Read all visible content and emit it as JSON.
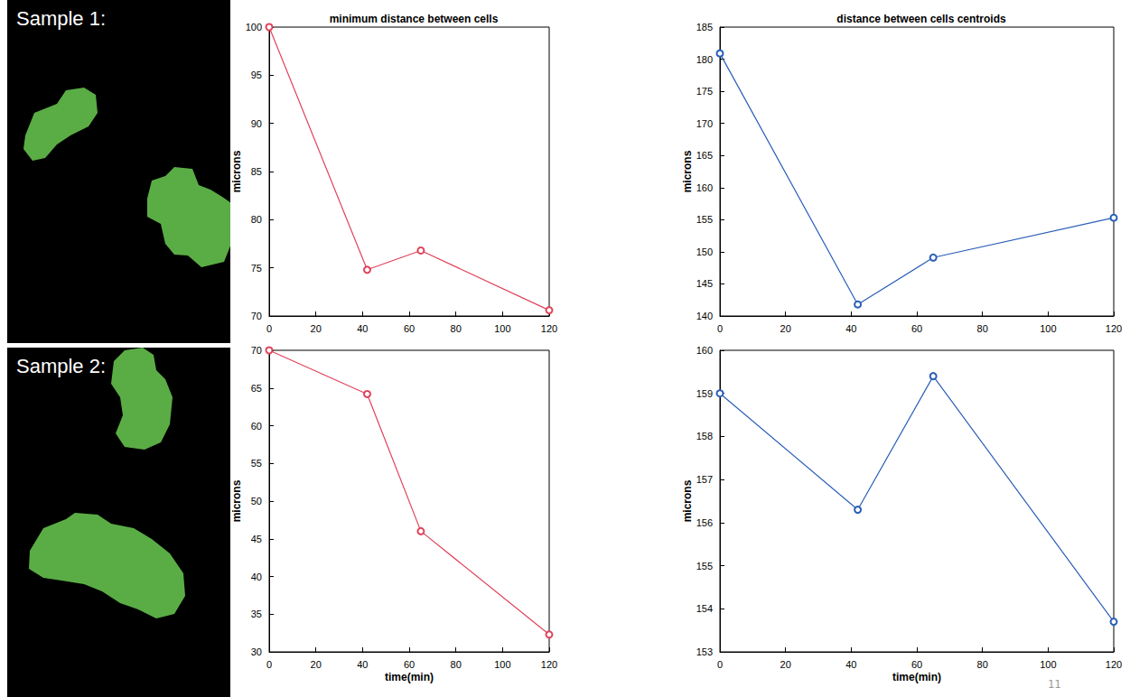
{
  "images": [
    {
      "label": "Sample 1:"
    },
    {
      "label": "Sample 2:"
    }
  ],
  "page_number": "11",
  "chart_data": [
    {
      "type": "line",
      "title": "minimum distance between cells",
      "ylabel": "microns",
      "x": [
        0,
        42,
        65,
        120
      ],
      "values": [
        100,
        74.8,
        76.8,
        70.6
      ],
      "color": "#e0435a",
      "marker": "circle",
      "xlim": [
        0,
        120
      ],
      "xticks": [
        0,
        20,
        40,
        60,
        80,
        100,
        120
      ],
      "ylim": [
        70,
        100
      ],
      "yticks": [
        70,
        75,
        80,
        85,
        90,
        95,
        100
      ],
      "grid": false
    },
    {
      "type": "line",
      "title": "distance between cells centroids",
      "ylabel": "microns",
      "x": [
        0,
        42,
        65,
        120
      ],
      "values": [
        180.9,
        141.8,
        149.1,
        155.3
      ],
      "color": "#2b5fb8",
      "marker": "circle",
      "xlim": [
        0,
        120
      ],
      "xticks": [
        0,
        20,
        40,
        60,
        80,
        100,
        120
      ],
      "ylim": [
        140,
        185
      ],
      "yticks": [
        140,
        145,
        150,
        155,
        160,
        165,
        170,
        175,
        180,
        185
      ],
      "grid": false
    },
    {
      "type": "line",
      "ylabel": "microns",
      "xlabel": "time(min)",
      "x": [
        0,
        42,
        65,
        120
      ],
      "values": [
        70,
        64.2,
        46,
        32.3
      ],
      "color": "#e0435a",
      "marker": "circle",
      "xlim": [
        0,
        120
      ],
      "xticks": [
        0,
        20,
        40,
        60,
        80,
        100,
        120
      ],
      "ylim": [
        30,
        70
      ],
      "yticks": [
        30,
        35,
        40,
        45,
        50,
        55,
        60,
        65,
        70
      ],
      "grid": false
    },
    {
      "type": "line",
      "ylabel": "microns",
      "xlabel": "time(min)",
      "x": [
        0,
        42,
        65,
        120
      ],
      "values": [
        159,
        156.3,
        159.4,
        153.7
      ],
      "color": "#2b5fb8",
      "marker": "circle",
      "xlim": [
        0,
        120
      ],
      "xticks": [
        0,
        20,
        40,
        60,
        80,
        100,
        120
      ],
      "ylim": [
        153,
        160
      ],
      "yticks": [
        153,
        154,
        155,
        156,
        157,
        158,
        159,
        160
      ],
      "grid": false
    }
  ]
}
